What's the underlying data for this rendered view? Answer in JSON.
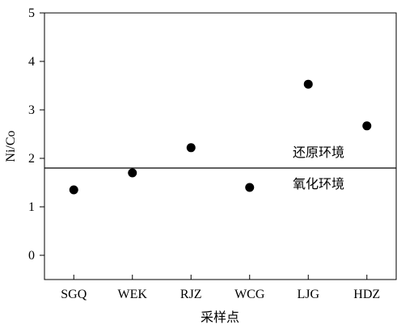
{
  "chart_data": {
    "type": "scatter",
    "xlabel": "采样点",
    "ylabel": "Ni/Co",
    "categories": [
      "SGQ",
      "WEK",
      "RJZ",
      "WCG",
      "LJG",
      "HDZ"
    ],
    "series": [
      {
        "values": [
          1.35,
          1.7,
          2.22,
          1.4,
          3.53,
          2.67
        ]
      }
    ],
    "ylim": [
      -0.5,
      5
    ],
    "yticks": [
      0,
      1,
      2,
      3,
      4,
      5
    ],
    "grid": false,
    "threshold": {
      "value": 1.8,
      "label_above": "还原环境",
      "label_below": "氧化环境"
    }
  }
}
